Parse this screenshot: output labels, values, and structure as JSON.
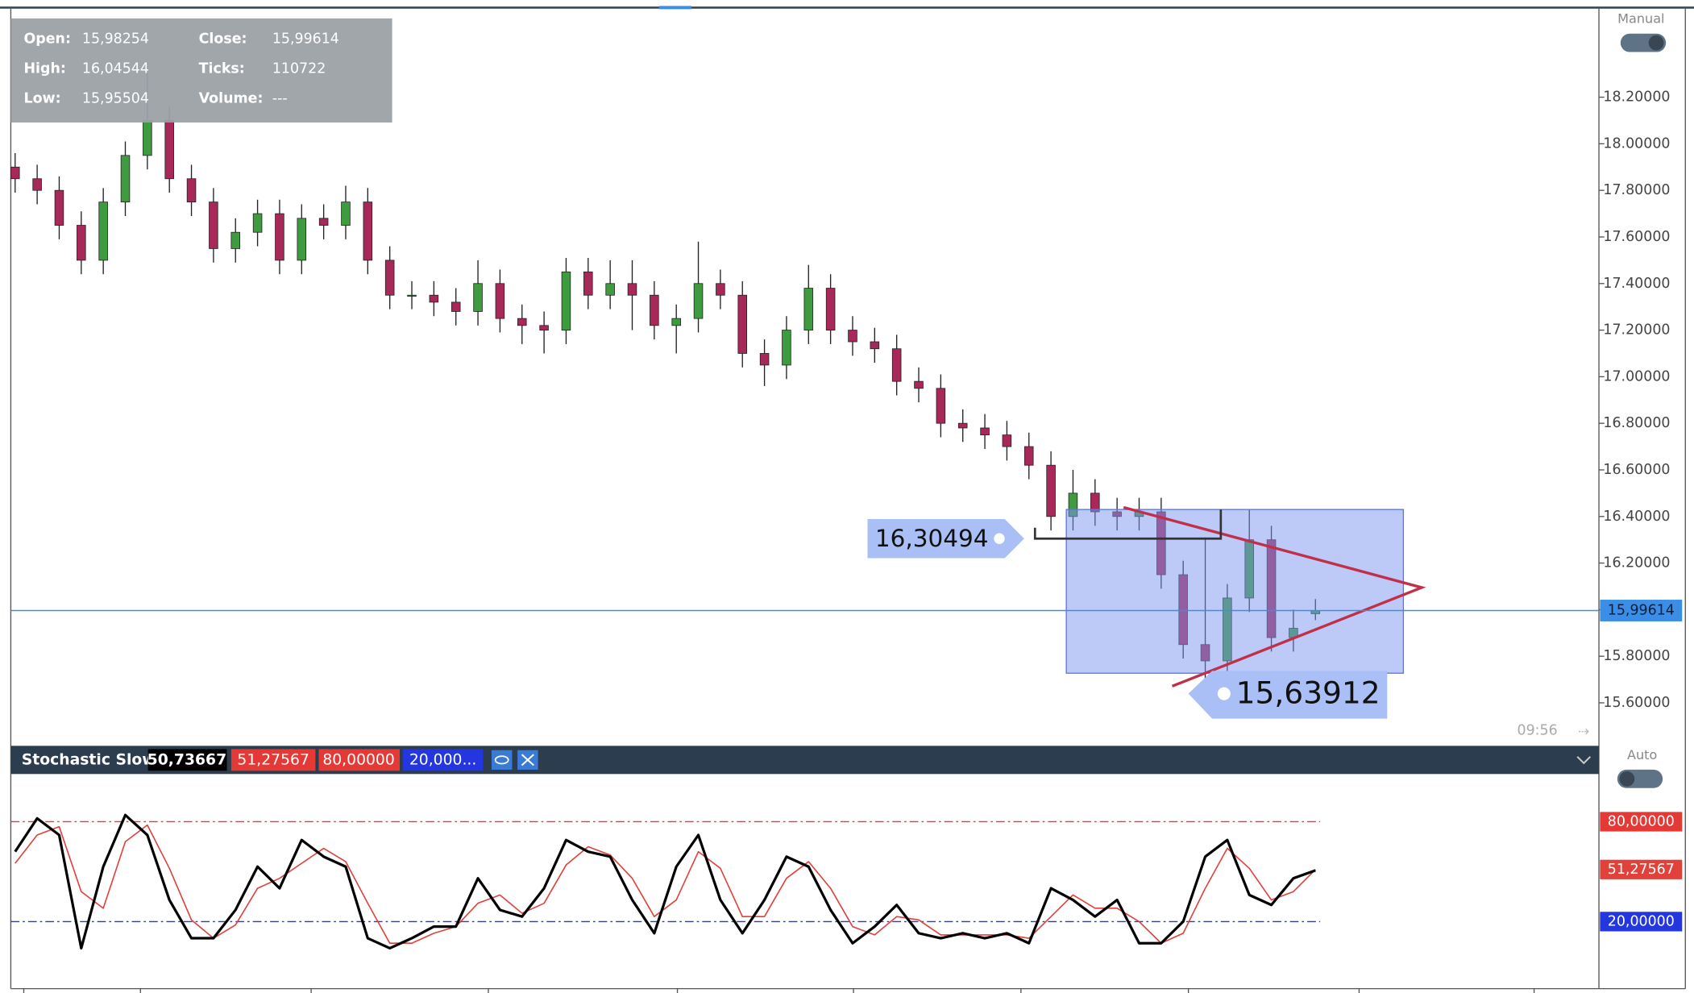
{
  "chart_data": [
    {
      "type": "candlestick",
      "open": [
        17.9,
        17.85,
        17.8,
        17.65,
        17.5,
        17.75,
        17.95,
        18.1,
        17.85,
        17.75,
        17.55,
        17.62,
        17.7,
        17.5,
        17.68,
        17.65,
        17.75,
        17.5,
        17.35,
        17.35,
        17.32,
        17.28,
        17.4,
        17.25,
        17.22,
        17.2,
        17.45,
        17.35,
        17.4,
        17.35,
        17.22,
        17.25,
        17.4,
        17.35,
        17.1,
        17.05,
        17.2,
        17.38,
        17.2,
        17.15,
        17.12,
        16.98,
        16.95,
        16.8,
        16.78,
        16.75,
        16.7,
        16.62,
        16.4,
        16.5,
        16.42,
        16.4,
        16.42,
        16.15,
        15.85,
        15.78,
        16.05,
        16.3,
        15.88,
        15.98254
      ],
      "high": [
        17.96,
        17.91,
        17.86,
        17.71,
        17.81,
        18.01,
        18.35,
        18.16,
        17.91,
        17.81,
        17.68,
        17.76,
        17.76,
        17.74,
        17.74,
        17.82,
        17.81,
        17.56,
        17.41,
        17.41,
        17.38,
        17.5,
        17.46,
        17.31,
        17.28,
        17.51,
        17.51,
        17.5,
        17.5,
        17.41,
        17.31,
        17.58,
        17.46,
        17.41,
        17.16,
        17.26,
        17.48,
        17.44,
        17.26,
        17.21,
        17.18,
        17.04,
        17.01,
        16.86,
        16.84,
        16.81,
        16.76,
        16.68,
        16.6,
        16.56,
        16.48,
        16.48,
        16.48,
        16.21,
        16.31,
        16.11,
        16.43,
        16.36,
        16.0,
        16.04544
      ],
      "low": [
        17.79,
        17.74,
        17.59,
        17.44,
        17.44,
        17.69,
        17.89,
        17.79,
        17.69,
        17.49,
        17.49,
        17.56,
        17.44,
        17.44,
        17.59,
        17.59,
        17.44,
        17.29,
        17.29,
        17.26,
        17.22,
        17.22,
        17.19,
        17.14,
        17.1,
        17.14,
        17.29,
        17.29,
        17.2,
        17.16,
        17.1,
        17.19,
        17.29,
        17.04,
        16.96,
        16.99,
        17.14,
        17.14,
        17.09,
        17.06,
        16.92,
        16.89,
        16.74,
        16.72,
        16.69,
        16.64,
        16.56,
        16.34,
        16.34,
        16.36,
        16.34,
        16.34,
        16.09,
        15.79,
        15.63912,
        15.72,
        15.99,
        15.82,
        15.82,
        15.95504
      ],
      "close": [
        17.85,
        17.8,
        17.65,
        17.5,
        17.75,
        17.95,
        18.1,
        17.85,
        17.75,
        17.55,
        17.62,
        17.7,
        17.5,
        17.68,
        17.65,
        17.75,
        17.5,
        17.35,
        17.35,
        17.32,
        17.28,
        17.4,
        17.25,
        17.22,
        17.2,
        17.45,
        17.35,
        17.4,
        17.35,
        17.22,
        17.25,
        17.4,
        17.35,
        17.1,
        17.05,
        17.2,
        17.38,
        17.2,
        17.15,
        17.12,
        16.98,
        16.95,
        16.8,
        16.78,
        16.75,
        16.7,
        16.62,
        16.4,
        16.5,
        16.42,
        16.4,
        16.42,
        16.15,
        15.85,
        15.78,
        16.05,
        16.3,
        15.88,
        15.92,
        15.99614
      ],
      "up_color": "#3f9b3f",
      "down_color": "#a8285a",
      "ylim": [
        15.42,
        18.58
      ],
      "yticks": [
        {
          "value": 15.6,
          "label": "15.60000"
        },
        {
          "value": 15.8,
          "label": "15.80000"
        },
        {
          "value": 16.0,
          "label": "16.00000"
        },
        {
          "value": 16.2,
          "label": "16.20000"
        },
        {
          "value": 16.4,
          "label": "16.40000"
        },
        {
          "value": 16.6,
          "label": "16.60000"
        },
        {
          "value": 16.8,
          "label": "16.80000"
        },
        {
          "value": 17.0,
          "label": "17.00000"
        },
        {
          "value": 17.2,
          "label": "17.20000"
        },
        {
          "value": 17.4,
          "label": "17.40000"
        },
        {
          "value": 17.6,
          "label": "17.60000"
        },
        {
          "value": 17.8,
          "label": "17.80000"
        },
        {
          "value": 18.0,
          "label": "18.00000"
        },
        {
          "value": 18.2,
          "label": "18.20000"
        }
      ],
      "price_line": {
        "value": 15.99614,
        "label": "15,99614",
        "color": "#3a8ee6"
      },
      "annotations": [
        {
          "value": 16.30494,
          "label": "16,30494"
        },
        {
          "value": 15.63912,
          "label": "15,63912"
        }
      ]
    },
    {
      "type": "line",
      "title": "Stochastic Slow",
      "series": [
        {
          "color": "#000000",
          "last_label": "50,73667",
          "values": [
            62,
            82,
            72,
            4,
            53,
            84,
            72,
            33,
            10,
            10,
            27,
            53,
            40,
            69,
            59,
            53,
            10,
            4,
            10,
            17,
            17,
            46,
            27,
            23,
            40,
            69,
            62,
            59,
            33,
            13,
            53,
            72,
            33,
            13,
            33,
            59,
            53,
            27,
            7,
            17,
            30,
            13,
            10,
            13,
            10,
            13,
            7,
            40,
            33,
            23,
            33,
            7,
            7,
            20,
            59,
            69,
            36,
            30,
            46,
            50.73667
          ]
        },
        {
          "color": "#e0413a",
          "last_label": "51,27567",
          "values": [
            55,
            72,
            77,
            38,
            28,
            68,
            78,
            52,
            21,
            10,
            18,
            40,
            46,
            55,
            64,
            56,
            31,
            7,
            7,
            13,
            17,
            31,
            36,
            25,
            31,
            54,
            65,
            60,
            46,
            23,
            33,
            62,
            52,
            23,
            23,
            46,
            56,
            40,
            17,
            12,
            23,
            21,
            12,
            12,
            12,
            12,
            10,
            23,
            36,
            28,
            28,
            20,
            7,
            13,
            40,
            64,
            52,
            33,
            38,
            51.27567
          ]
        }
      ],
      "ylim": [
        -19,
        108
      ],
      "levels": [
        {
          "value": 80,
          "label": "80,00000",
          "color": "#e53935"
        },
        {
          "value": 20,
          "label": "20,00000",
          "color": "#2336e0"
        }
      ],
      "chip_20": "20,000..."
    }
  ],
  "info": {
    "rows": [
      [
        "Open:",
        "15,98254",
        "Close:",
        "15,99614"
      ],
      [
        "High:",
        "16,04544",
        "Ticks:",
        "110722"
      ],
      [
        "Low:",
        "15,95504",
        "Volume:",
        "---"
      ]
    ]
  },
  "ui": {
    "mode": "Manual",
    "stoch_mode": "Auto",
    "time": "09:56"
  }
}
